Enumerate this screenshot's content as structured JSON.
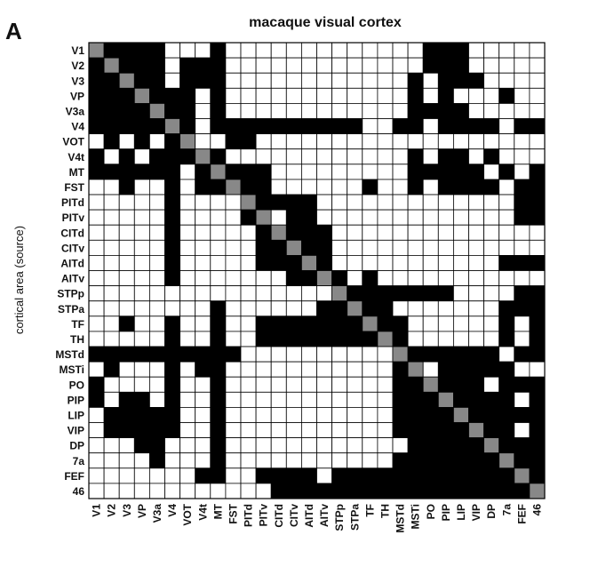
{
  "panel_letter": "A",
  "chart_data": {
    "type": "heatmap",
    "title": "macaque visual cortex",
    "ylabel": "cortical area (source)",
    "xlabel": "",
    "labels": [
      "V1",
      "V2",
      "V3",
      "VP",
      "V3a",
      "V4",
      "VOT",
      "V4t",
      "MT",
      "FST",
      "PITd",
      "PITv",
      "CITd",
      "CITv",
      "AITd",
      "AITv",
      "STPp",
      "STPa",
      "TF",
      "TH",
      "MSTd",
      "MSTi",
      "PO",
      "PIP",
      "LIP",
      "VIP",
      "DP",
      "7a",
      "FEF",
      "46"
    ],
    "legend": {
      "connection": "#000000",
      "no_connection": "#ffffff",
      "diagonal": "#888888"
    },
    "matrix": [
      "111110001000000000000011100000",
      "111110111000000000000011100000",
      "111110111000000000000101110000",
      "111111101000000000000101000100",
      "111111101000000000000111100000",
      "111111101111111111001101111011",
      "010101100110000000000000000000",
      "101011111000000000000101101000",
      "111111011111000000000111110101",
      "001001011111000000100101111011",
      "000001000011111000000000000011",
      "000001000011011000000000000011",
      "000001000001111100000000000000",
      "000001000001111100000000000000",
      "000001000001111100000000000111",
      "000001000000011110100000000000",
      "000000000000000011111111000011",
      "000000001000000111110000000111",
      "001001001001111111111000000101",
      "000001001001111111111000000101",
      "111111111100000000001111111011",
      "010001011000000000001101111100",
      "100001001000000000001111110111",
      "101101001000000000001111111101",
      "011111001000000000001111111111",
      "011111001000000000001111111101",
      "000110001000000000000111111111",
      "000010001000000000001111111111",
      "000000011001111011111111111111",
      "000000000000111111111111111111"
    ]
  }
}
